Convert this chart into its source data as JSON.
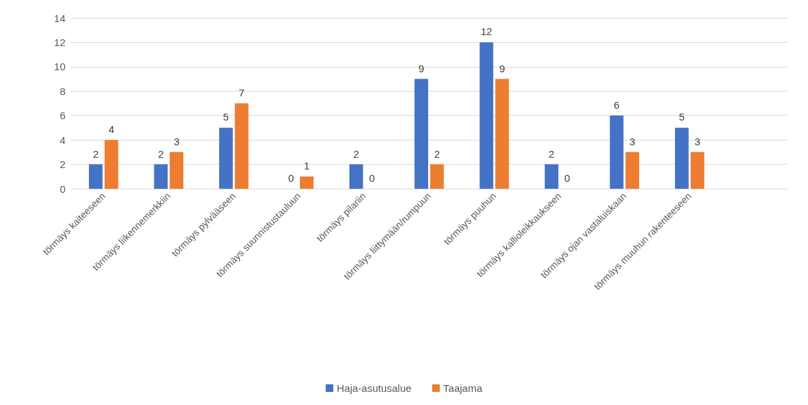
{
  "chart_data": {
    "type": "bar",
    "categories": [
      "törmäys kaiteeseen",
      "törmäys liikennemerkkiin",
      "törmäys pylvääseen",
      "törmäys suunnistustauluun",
      "törmäys pilariin",
      "törmäys liittymään/rumpuun",
      "törmäys puuhun",
      "törmäys kallioleikkaukseen",
      "törmäys ojan vastaluiskaan",
      "törmäys muuhun rakenteeseen",
      null
    ],
    "series": [
      {
        "name": "Haja-asutusalue",
        "color": "#4472c4",
        "values": [
          2,
          2,
          5,
          0,
          2,
          9,
          12,
          2,
          6,
          5,
          null
        ]
      },
      {
        "name": "Taajama",
        "color": "#ed7d31",
        "values": [
          4,
          3,
          7,
          1,
          0,
          2,
          9,
          0,
          3,
          3,
          null
        ]
      }
    ],
    "ylim": [
      0,
      14
    ],
    "yticks": [
      0,
      2,
      4,
      6,
      8,
      10,
      12,
      14
    ],
    "grid": "y",
    "legend": "bottom",
    "data_labels": true
  }
}
